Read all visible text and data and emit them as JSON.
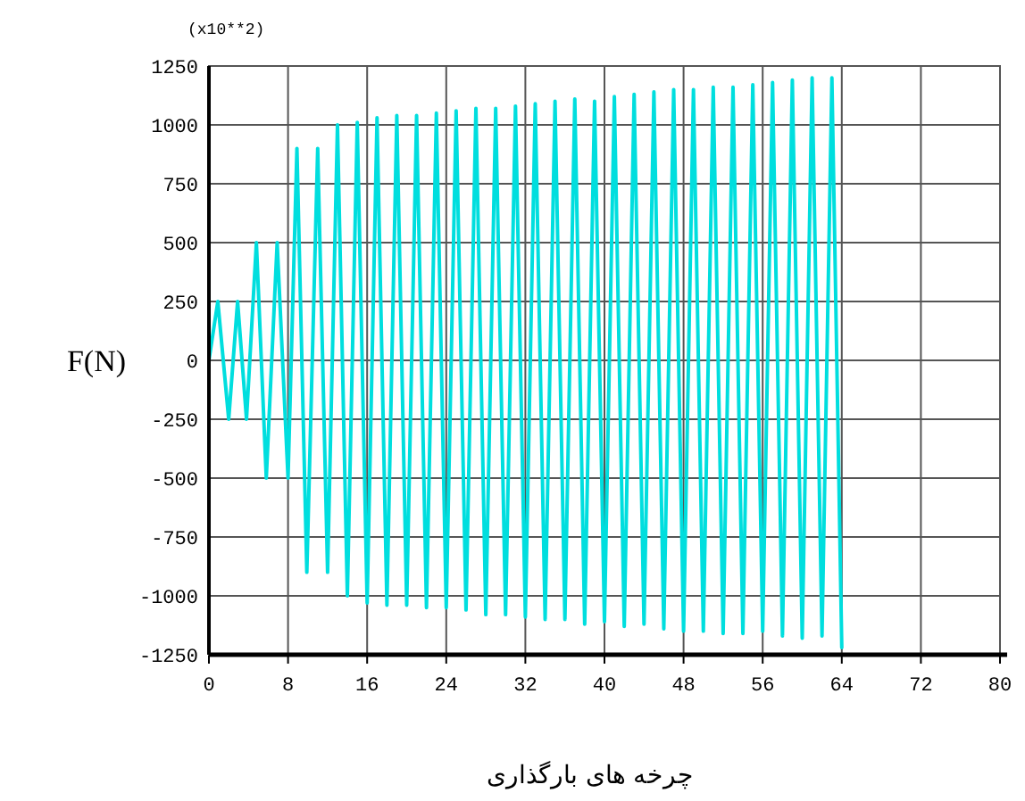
{
  "chart_data": {
    "type": "line",
    "xlabel": "چرخه های بارگذاری",
    "ylabel": "F(N)",
    "annotations": [
      "(x10**2)"
    ],
    "xlim": [
      0,
      80
    ],
    "xticks": [
      0,
      8,
      16,
      24,
      32,
      40,
      48,
      56,
      64,
      72,
      80
    ],
    "ylim": [
      -1250,
      1250
    ],
    "yticks": [
      -1250,
      -1000,
      -750,
      -500,
      -250,
      0,
      250,
      500,
      750,
      1000,
      1250
    ],
    "grid": true,
    "marker": "none",
    "line_style": "solid",
    "series": [
      {
        "color": "#00dede",
        "x": [
          0,
          0.9,
          2,
          2.9,
          3.8,
          4.8,
          5.8,
          6.9,
          8,
          8.9,
          9.9,
          11,
          12,
          13,
          14,
          15,
          16,
          17,
          18,
          19,
          20,
          21,
          22,
          23,
          24,
          25,
          26,
          27,
          28,
          29,
          30,
          31,
          32,
          33,
          34,
          35,
          36,
          37,
          38,
          39,
          40,
          41,
          42,
          43,
          44,
          45,
          46,
          47,
          48,
          49,
          50,
          51,
          52,
          53,
          54,
          55,
          56,
          57,
          58,
          59,
          60,
          61,
          62,
          63,
          64
        ],
        "values": [
          0,
          250,
          -250,
          250,
          -250,
          500,
          -500,
          500,
          -500,
          900,
          -900,
          900,
          -900,
          1000,
          -1000,
          1010,
          -1030,
          1030,
          -1040,
          1040,
          -1040,
          1040,
          -1050,
          1050,
          -1050,
          1060,
          -1060,
          1070,
          -1080,
          1070,
          -1080,
          1080,
          -1090,
          1090,
          -1100,
          1100,
          -1100,
          1110,
          -1120,
          1100,
          -1110,
          1120,
          -1130,
          1130,
          -1120,
          1140,
          -1140,
          1150,
          -1150,
          1150,
          -1150,
          1160,
          -1160,
          1160,
          -1160,
          1170,
          -1150,
          1180,
          -1170,
          1190,
          -1180,
          1200,
          -1170,
          1200,
          -1220
        ]
      }
    ]
  }
}
